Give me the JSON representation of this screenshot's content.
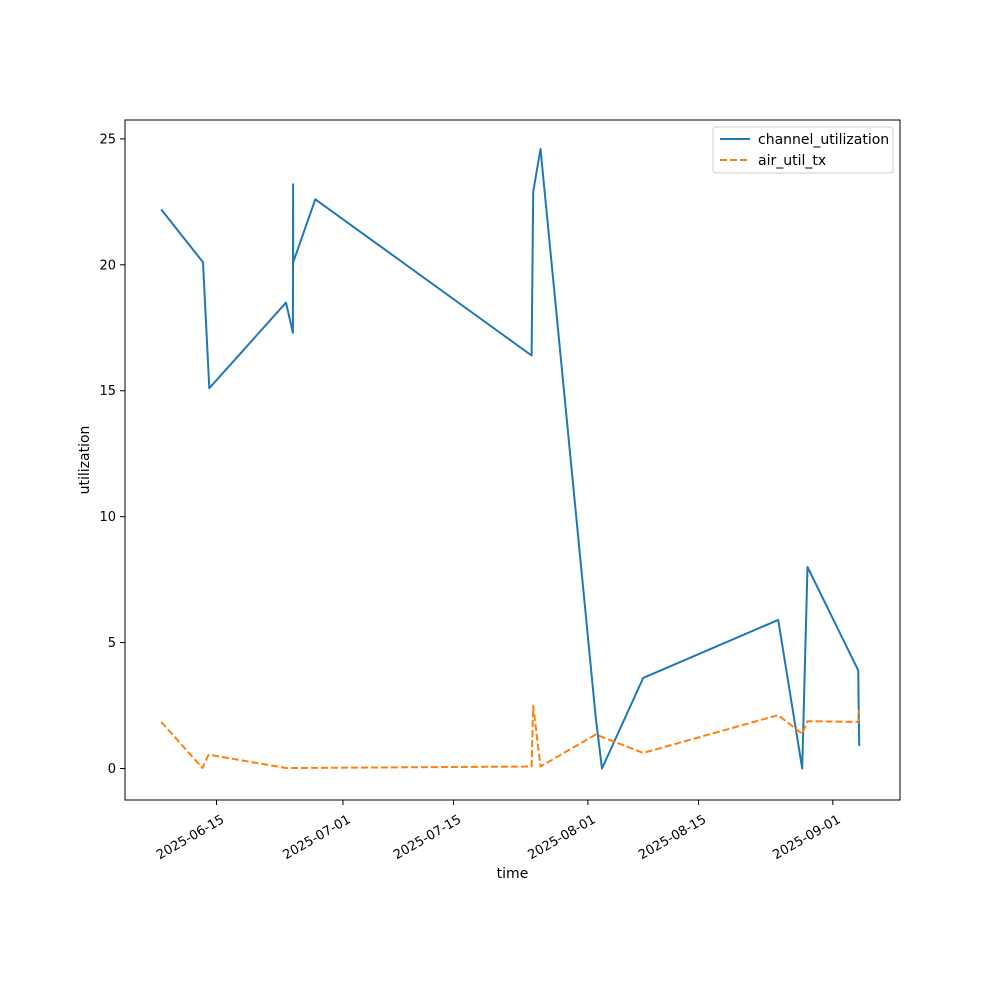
{
  "chart_data": {
    "type": "line",
    "title": "",
    "xlabel": "time",
    "ylabel": "utilization",
    "grid": false,
    "legend_position": "top-right",
    "xlim": [
      "2025-06-03T10:00",
      "2025-09-09T12:00"
    ],
    "ylim": [
      -1.25,
      25.75
    ],
    "x_ticks": [
      "2025-06-15",
      "2025-07-01",
      "2025-07-15",
      "2025-08-01",
      "2025-08-15",
      "2025-09-01"
    ],
    "y_ticks": [
      0,
      5,
      10,
      15,
      20,
      25
    ],
    "series": [
      {
        "name": "channel_utilization",
        "color": "#1f77b4",
        "line_style": "solid",
        "points": [
          {
            "x": "2025-06-08T00:00",
            "y": 22.2
          },
          {
            "x": "2025-06-13T07:00",
            "y": 20.1
          },
          {
            "x": "2025-06-14T02:00",
            "y": 15.1
          },
          {
            "x": "2025-06-23T19:00",
            "y": 18.5
          },
          {
            "x": "2025-06-24T16:00",
            "y": 17.3
          },
          {
            "x": "2025-06-24T16:30",
            "y": 23.2
          },
          {
            "x": "2025-06-24T17:00",
            "y": 20.1
          },
          {
            "x": "2025-06-27T12:00",
            "y": 22.6
          },
          {
            "x": "2025-07-24T21:00",
            "y": 16.4
          },
          {
            "x": "2025-07-25T02:00",
            "y": 22.9
          },
          {
            "x": "2025-07-26T00:00",
            "y": 24.6
          },
          {
            "x": "2025-08-02T00:00",
            "y": 2.0
          },
          {
            "x": "2025-08-02T19:00",
            "y": 0.0
          },
          {
            "x": "2025-08-08T00:00",
            "y": 3.6
          },
          {
            "x": "2025-08-25T02:00",
            "y": 5.9
          },
          {
            "x": "2025-08-28T03:00",
            "y": 0.0
          },
          {
            "x": "2025-08-28T19:00",
            "y": 8.0
          },
          {
            "x": "2025-09-04T05:00",
            "y": 3.9
          },
          {
            "x": "2025-09-04T08:00",
            "y": 0.9
          }
        ]
      },
      {
        "name": "air_util_tx",
        "color": "#ff7f0e",
        "line_style": "dashed",
        "points": [
          {
            "x": "2025-06-08T00:00",
            "y": 1.85
          },
          {
            "x": "2025-06-13T05:00",
            "y": 0.02
          },
          {
            "x": "2025-06-14T00:00",
            "y": 0.55
          },
          {
            "x": "2025-06-23T19:00",
            "y": 0.02
          },
          {
            "x": "2025-06-24T16:00",
            "y": 0.02
          },
          {
            "x": "2025-07-24T21:00",
            "y": 0.08
          },
          {
            "x": "2025-07-25T02:00",
            "y": 2.5
          },
          {
            "x": "2025-07-26T00:00",
            "y": 0.08
          },
          {
            "x": "2025-08-02T00:00",
            "y": 1.35
          },
          {
            "x": "2025-08-08T00:00",
            "y": 0.62
          },
          {
            "x": "2025-08-25T02:00",
            "y": 2.12
          },
          {
            "x": "2025-08-28T03:00",
            "y": 1.38
          },
          {
            "x": "2025-08-28T19:00",
            "y": 1.88
          },
          {
            "x": "2025-09-04T05:00",
            "y": 1.85
          },
          {
            "x": "2025-09-04T08:00",
            "y": 2.35
          }
        ]
      }
    ]
  }
}
